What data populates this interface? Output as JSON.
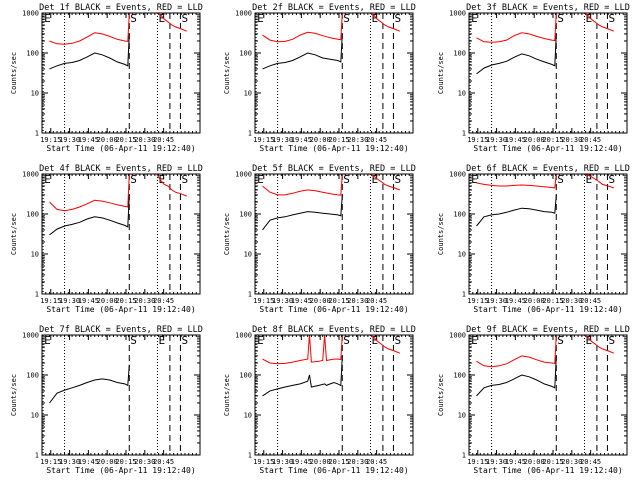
{
  "chart_data": {
    "type": "line",
    "y_scale": "log",
    "ylim": [
      1,
      1000
    ],
    "ytick_labels": [
      "1",
      "10",
      "100",
      "1000"
    ],
    "xtick_labels": [
      "19:15",
      "19:30",
      "19:45",
      "20:00",
      "20:15",
      "20:30",
      "20:45"
    ],
    "x_range_minutes": [
      0,
      42
    ],
    "xlabel": "Start Time (06-Apr-11 19:12:40)",
    "ylabel": "Counts/sec",
    "series_colors": {
      "events": "#000000",
      "lld": "#ff0000"
    },
    "markers": [
      {
        "label": "E",
        "x_min": 0.3,
        "style": "dotted"
      },
      {
        "label": "",
        "x_min": 6.0,
        "style": "dotted"
      },
      {
        "label": "S",
        "x_min": 23.2,
        "style": "dashed"
      },
      {
        "label": "E",
        "x_min": 30.7,
        "style": "dotted"
      },
      {
        "label": "",
        "x_min": 34.0,
        "style": "dashed"
      },
      {
        "label": "S",
        "x_min": 36.8,
        "style": "dashed"
      }
    ],
    "panels": [
      {
        "title": "Det 1f BLACK = Events, RED = LLD",
        "events": [
          [
            2,
            40
          ],
          [
            4,
            48
          ],
          [
            6,
            55
          ],
          [
            8,
            58
          ],
          [
            10,
            65
          ],
          [
            12,
            80
          ],
          [
            14,
            100
          ],
          [
            16,
            90
          ],
          [
            18,
            75
          ],
          [
            20,
            60
          ],
          [
            22,
            52
          ],
          [
            22.8,
            48
          ],
          [
            23.2,
            300
          ]
        ],
        "lld": [
          [
            2,
            200
          ],
          [
            4,
            170
          ],
          [
            6,
            165
          ],
          [
            8,
            175
          ],
          [
            10,
            200
          ],
          [
            12,
            250
          ],
          [
            14,
            320
          ],
          [
            16,
            300
          ],
          [
            18,
            260
          ],
          [
            20,
            220
          ],
          [
            22,
            200
          ],
          [
            22.8,
            195
          ],
          [
            23.2,
            1000
          ],
          [
            30.5,
            1000
          ],
          [
            31.5,
            900
          ],
          [
            32.5,
            700
          ],
          [
            33.5,
            600
          ],
          [
            34.5,
            500
          ],
          [
            35.5,
            450
          ],
          [
            37,
            400
          ],
          [
            38.5,
            350
          ]
        ]
      },
      {
        "title": "Det 2f BLACK = Events, RED = LLD",
        "events": [
          [
            2,
            40
          ],
          [
            4,
            48
          ],
          [
            6,
            55
          ],
          [
            8,
            58
          ],
          [
            10,
            65
          ],
          [
            12,
            80
          ],
          [
            14,
            100
          ],
          [
            16,
            90
          ],
          [
            18,
            75
          ],
          [
            20,
            70
          ],
          [
            22,
            65
          ],
          [
            22.8,
            60
          ],
          [
            23.2,
            300
          ]
        ],
        "lld": [
          [
            2,
            280
          ],
          [
            4,
            210
          ],
          [
            6,
            190
          ],
          [
            8,
            195
          ],
          [
            10,
            220
          ],
          [
            12,
            280
          ],
          [
            14,
            330
          ],
          [
            16,
            310
          ],
          [
            18,
            270
          ],
          [
            20,
            240
          ],
          [
            22,
            220
          ],
          [
            22.8,
            215
          ],
          [
            23.2,
            1000
          ],
          [
            30.5,
            1000
          ],
          [
            31.5,
            900
          ],
          [
            32.5,
            700
          ],
          [
            33.5,
            600
          ],
          [
            34.5,
            500
          ],
          [
            35.5,
            450
          ],
          [
            37,
            400
          ],
          [
            38.5,
            350
          ]
        ]
      },
      {
        "title": "Det 3f BLACK = Events, RED = LLD",
        "events": [
          [
            2,
            30
          ],
          [
            4,
            42
          ],
          [
            6,
            50
          ],
          [
            8,
            55
          ],
          [
            10,
            62
          ],
          [
            12,
            78
          ],
          [
            14,
            95
          ],
          [
            16,
            85
          ],
          [
            18,
            70
          ],
          [
            20,
            60
          ],
          [
            22,
            52
          ],
          [
            22.8,
            48
          ],
          [
            23.2,
            300
          ]
        ],
        "lld": [
          [
            2,
            240
          ],
          [
            4,
            190
          ],
          [
            6,
            185
          ],
          [
            8,
            190
          ],
          [
            10,
            210
          ],
          [
            12,
            270
          ],
          [
            14,
            320
          ],
          [
            16,
            300
          ],
          [
            18,
            260
          ],
          [
            20,
            230
          ],
          [
            22,
            210
          ],
          [
            22.8,
            205
          ],
          [
            23.2,
            1000
          ],
          [
            30.5,
            1000
          ],
          [
            31.5,
            900
          ],
          [
            32.5,
            700
          ],
          [
            33.5,
            600
          ],
          [
            34.5,
            500
          ],
          [
            35.5,
            450
          ],
          [
            37,
            400
          ],
          [
            38.5,
            350
          ]
        ]
      },
      {
        "title": "Det 4f BLACK = Events, RED = LLD",
        "events": [
          [
            2,
            30
          ],
          [
            4,
            42
          ],
          [
            6,
            50
          ],
          [
            8,
            55
          ],
          [
            10,
            62
          ],
          [
            12,
            75
          ],
          [
            14,
            85
          ],
          [
            16,
            80
          ],
          [
            18,
            70
          ],
          [
            20,
            60
          ],
          [
            22,
            52
          ],
          [
            22.8,
            48
          ],
          [
            23.2,
            300
          ]
        ],
        "lld": [
          [
            2,
            200
          ],
          [
            4,
            130
          ],
          [
            6,
            120
          ],
          [
            8,
            130
          ],
          [
            10,
            150
          ],
          [
            12,
            180
          ],
          [
            14,
            220
          ],
          [
            16,
            210
          ],
          [
            18,
            190
          ],
          [
            20,
            170
          ],
          [
            22,
            155
          ],
          [
            22.8,
            150
          ],
          [
            23.2,
            1000
          ],
          [
            30.5,
            1000
          ],
          [
            31.5,
            700
          ],
          [
            32.5,
            550
          ],
          [
            33.5,
            500
          ],
          [
            34.5,
            400
          ],
          [
            35.5,
            350
          ],
          [
            37,
            320
          ],
          [
            38.5,
            280
          ]
        ]
      },
      {
        "title": "Det 5f BLACK = Events, RED = LLD",
        "events": [
          [
            2,
            40
          ],
          [
            4,
            70
          ],
          [
            6,
            80
          ],
          [
            8,
            85
          ],
          [
            10,
            95
          ],
          [
            12,
            105
          ],
          [
            14,
            115
          ],
          [
            16,
            110
          ],
          [
            18,
            105
          ],
          [
            20,
            100
          ],
          [
            22,
            95
          ],
          [
            22.8,
            90
          ],
          [
            23.2,
            300
          ]
        ],
        "lld": [
          [
            2,
            500
          ],
          [
            4,
            350
          ],
          [
            6,
            300
          ],
          [
            8,
            300
          ],
          [
            10,
            330
          ],
          [
            12,
            370
          ],
          [
            14,
            400
          ],
          [
            16,
            380
          ],
          [
            18,
            350
          ],
          [
            20,
            320
          ],
          [
            22,
            300
          ],
          [
            22.8,
            295
          ],
          [
            23.2,
            1000
          ],
          [
            30.5,
            1000
          ],
          [
            31.5,
            900
          ],
          [
            32.5,
            750
          ],
          [
            33.5,
            650
          ],
          [
            34.5,
            550
          ],
          [
            35.5,
            500
          ],
          [
            37,
            450
          ],
          [
            38.5,
            400
          ]
        ]
      },
      {
        "title": "Det 6f BLACK = Events, RED = LLD",
        "events": [
          [
            2,
            50
          ],
          [
            4,
            85
          ],
          [
            6,
            95
          ],
          [
            8,
            100
          ],
          [
            10,
            110
          ],
          [
            12,
            125
          ],
          [
            14,
            140
          ],
          [
            16,
            135
          ],
          [
            18,
            125
          ],
          [
            20,
            115
          ],
          [
            22,
            110
          ],
          [
            22.8,
            105
          ],
          [
            23.2,
            300
          ]
        ],
        "lld": [
          [
            2,
            600
          ],
          [
            4,
            550
          ],
          [
            6,
            520
          ],
          [
            8,
            500
          ],
          [
            10,
            500
          ],
          [
            12,
            520
          ],
          [
            14,
            530
          ],
          [
            16,
            520
          ],
          [
            18,
            500
          ],
          [
            20,
            480
          ],
          [
            22,
            460
          ],
          [
            22.8,
            450
          ],
          [
            23.2,
            1000
          ],
          [
            30.5,
            1000
          ],
          [
            31.5,
            950
          ],
          [
            32.5,
            850
          ],
          [
            33.5,
            750
          ],
          [
            34.5,
            650
          ],
          [
            35.5,
            550
          ],
          [
            37,
            500
          ],
          [
            38.5,
            450
          ]
        ]
      },
      {
        "title": "Det 7f BLACK = Events, RED = LLD",
        "events": [
          [
            2,
            20
          ],
          [
            4,
            35
          ],
          [
            6,
            42
          ],
          [
            8,
            48
          ],
          [
            10,
            55
          ],
          [
            12,
            65
          ],
          [
            14,
            75
          ],
          [
            16,
            80
          ],
          [
            18,
            75
          ],
          [
            20,
            65
          ],
          [
            22,
            60
          ],
          [
            22.8,
            55
          ],
          [
            23.2,
            180
          ]
        ],
        "lld": []
      },
      {
        "title": "Det 8f BLACK = Events, RED = LLD",
        "events": [
          [
            2,
            30
          ],
          [
            4,
            40
          ],
          [
            6,
            45
          ],
          [
            8,
            50
          ],
          [
            10,
            55
          ],
          [
            12,
            60
          ],
          [
            14,
            70
          ],
          [
            14.5,
            100
          ],
          [
            15,
            50
          ],
          [
            17,
            55
          ],
          [
            18.5,
            60
          ],
          [
            19,
            55
          ],
          [
            20,
            60
          ],
          [
            21,
            65
          ],
          [
            22,
            60
          ],
          [
            22.8,
            55
          ],
          [
            23.2,
            300
          ]
        ],
        "lld": [
          [
            2,
            250
          ],
          [
            4,
            200
          ],
          [
            6,
            190
          ],
          [
            8,
            195
          ],
          [
            10,
            210
          ],
          [
            12,
            230
          ],
          [
            14,
            250
          ],
          [
            14.5,
            1000
          ],
          [
            15,
            210
          ],
          [
            17,
            220
          ],
          [
            18,
            230
          ],
          [
            18.5,
            1000
          ],
          [
            19,
            230
          ],
          [
            20,
            240
          ],
          [
            21,
            250
          ],
          [
            22,
            250
          ],
          [
            22.8,
            245
          ],
          [
            23.2,
            1000
          ],
          [
            30.5,
            1000
          ],
          [
            31.5,
            900
          ],
          [
            32.5,
            700
          ],
          [
            33.5,
            600
          ],
          [
            34.5,
            500
          ],
          [
            35.5,
            450
          ],
          [
            37,
            400
          ],
          [
            38.5,
            350
          ]
        ]
      },
      {
        "title": "Det 9f BLACK = Events, RED = LLD",
        "events": [
          [
            2,
            30
          ],
          [
            4,
            48
          ],
          [
            6,
            55
          ],
          [
            8,
            58
          ],
          [
            10,
            65
          ],
          [
            12,
            80
          ],
          [
            14,
            100
          ],
          [
            16,
            90
          ],
          [
            18,
            75
          ],
          [
            20,
            60
          ],
          [
            22,
            52
          ],
          [
            22.8,
            48
          ],
          [
            23.2,
            300
          ]
        ],
        "lld": [
          [
            2,
            220
          ],
          [
            4,
            170
          ],
          [
            6,
            160
          ],
          [
            8,
            170
          ],
          [
            10,
            190
          ],
          [
            12,
            240
          ],
          [
            14,
            300
          ],
          [
            16,
            280
          ],
          [
            18,
            240
          ],
          [
            20,
            210
          ],
          [
            22,
            200
          ],
          [
            22.8,
            195
          ],
          [
            23.2,
            1000
          ],
          [
            30.5,
            1000
          ],
          [
            31.5,
            900
          ],
          [
            32.5,
            700
          ],
          [
            33.5,
            600
          ],
          [
            34.5,
            500
          ],
          [
            35.5,
            450
          ],
          [
            37,
            400
          ],
          [
            38.5,
            350
          ]
        ]
      }
    ]
  }
}
